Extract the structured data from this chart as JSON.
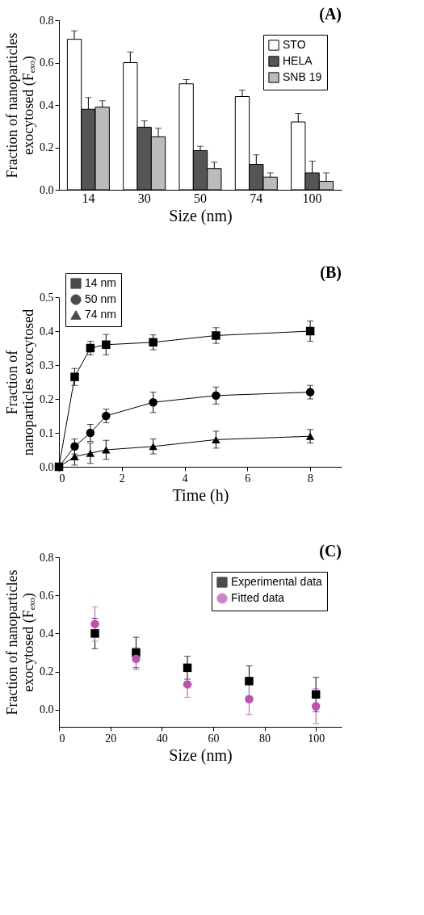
{
  "chart_data": [
    {
      "type": "bar",
      "title": "(A)",
      "xlabel": "Size (nm)",
      "ylabel": "Fraction of nanoparticles exocytosed (Fₑₓₒ)",
      "categories": [
        "14",
        "30",
        "50",
        "74",
        "100"
      ],
      "ylim": [
        0,
        0.8
      ],
      "yticks": [
        {
          "value": 0,
          "label": "0.0"
        },
        {
          "value": 0.2,
          "label": "0.2"
        },
        {
          "value": 0.4,
          "label": "0.4"
        },
        {
          "value": 0.6,
          "label": "0.6"
        },
        {
          "value": 0.8,
          "label": "0.8"
        }
      ],
      "legend": "top right",
      "series": [
        {
          "name": "STO",
          "color": "#ffffff",
          "values": [
            0.71,
            0.6,
            0.5,
            0.44,
            0.32
          ],
          "errors": [
            [
              0.71,
              0.75
            ],
            [
              0.6,
              0.65
            ],
            [
              0.5,
              0.52
            ],
            [
              0.44,
              0.47
            ],
            [
              0.32,
              0.36
            ]
          ]
        },
        {
          "name": "HELA",
          "color": "#555555",
          "values": [
            0.38,
            0.295,
            0.185,
            0.12,
            0.08
          ],
          "errors": [
            [
              0.38,
              0.435
            ],
            [
              0.295,
              0.325
            ],
            [
              0.185,
              0.205
            ],
            [
              0.12,
              0.165
            ],
            [
              0.08,
              0.135
            ]
          ]
        },
        {
          "name": "SNB 19",
          "color": "#bbbbbb",
          "values": [
            0.39,
            0.25,
            0.1,
            0.06,
            0.04
          ],
          "errors": [
            [
              0.39,
              0.42
            ],
            [
              0.25,
              0.29
            ],
            [
              0.1,
              0.13
            ],
            [
              0.06,
              0.08
            ],
            [
              0.04,
              0.08
            ]
          ]
        }
      ]
    },
    {
      "type": "line",
      "title": "(B)",
      "xlabel": "Time (h)",
      "ylabel": "Fraction of nanoparticles exocytosed",
      "x": [
        0,
        0.5,
        1,
        1.5,
        3,
        5,
        8
      ],
      "xlim": [
        0,
        9
      ],
      "xticks": [
        0,
        2,
        4,
        6,
        8
      ],
      "ylim": [
        0,
        0.5
      ],
      "yticks": [
        {
          "value": 0,
          "label": "0.0"
        },
        {
          "value": 0.1,
          "label": "0.1"
        },
        {
          "value": 0.2,
          "label": "0.2"
        },
        {
          "value": 0.3,
          "label": "0.3"
        },
        {
          "value": 0.4,
          "label": "0.4"
        },
        {
          "value": 0.5,
          "label": "0.5"
        }
      ],
      "legend": "top left",
      "series": [
        {
          "name": "14 nm",
          "color": "#000000",
          "marker": "square",
          "values": [
            0,
            0.265,
            0.35,
            0.36,
            0.367,
            0.387,
            0.4
          ],
          "errors": [
            null,
            0.025,
            0.02,
            0.03,
            0.022,
            0.023,
            0.03
          ]
        },
        {
          "name": "50 nm",
          "color": "#000000",
          "marker": "circle",
          "values": [
            0,
            0.06,
            0.1,
            0.15,
            0.19,
            0.21,
            0.22
          ],
          "errors": [
            null,
            0.022,
            0.025,
            0.02,
            0.03,
            0.025,
            0.02
          ]
        },
        {
          "name": "74 nm",
          "color": "#000000",
          "marker": "triangle",
          "values": [
            0,
            0.03,
            0.04,
            0.05,
            0.06,
            0.08,
            0.09
          ],
          "errors": [
            null,
            0.025,
            0.03,
            0.028,
            0.022,
            0.025,
            0.02
          ]
        }
      ]
    },
    {
      "type": "scatter",
      "title": "(C)",
      "xlabel": "Size (nm)",
      "ylabel": "Fraction of nanoparticles exocytosed (Fₑₓₒ)",
      "x": [
        14,
        30,
        50,
        74,
        100
      ],
      "xlim": [
        0,
        110
      ],
      "xticks": [
        0,
        20,
        40,
        60,
        80,
        100
      ],
      "ylim": [
        -0.09,
        0.8
      ],
      "yticks": [
        {
          "value": 0,
          "label": "0.0"
        },
        {
          "value": 0.2,
          "label": "0.2"
        },
        {
          "value": 0.4,
          "label": "0.4"
        },
        {
          "value": 0.6,
          "label": "0.6"
        },
        {
          "value": 0.8,
          "label": "0.8"
        }
      ],
      "legend": "top right",
      "series": [
        {
          "name": "Experimental data",
          "color": "#000000",
          "marker": "square",
          "values": [
            0.4,
            0.3,
            0.22,
            0.15,
            0.08
          ],
          "errors": [
            0.08,
            0.08,
            0.06,
            0.08,
            0.09
          ]
        },
        {
          "name": "Fitted data",
          "color": "#c050b0",
          "marker": "circle",
          "values": [
            0.45,
            0.267,
            0.133,
            0.055,
            0.018
          ],
          "errors": [
            0.09,
            0.058,
            0.068,
            0.08,
            0.092
          ]
        }
      ]
    }
  ]
}
